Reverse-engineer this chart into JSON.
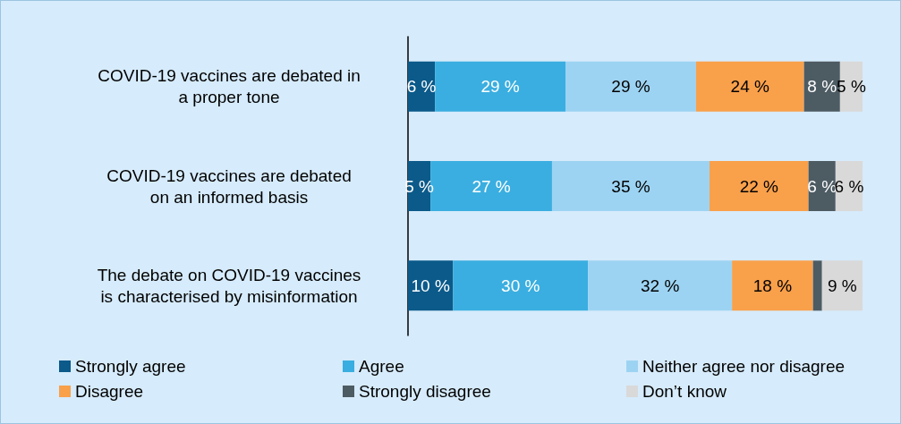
{
  "chart_data": {
    "type": "bar",
    "orientation": "horizontal",
    "stacked": true,
    "categories": [
      "COVID-19 vaccines are debated in\na proper tone",
      "COVID-19 vaccines are debated\non an informed basis",
      "The debate on COVID-19 vaccines\nis characterised by misinformation"
    ],
    "xlim": [
      0,
      101
    ],
    "tick_labels": "y",
    "legend": "bottom",
    "series": [
      {
        "name": "Strongly agree",
        "color": "#0b5a8a",
        "values": [
          6,
          5,
          10
        ],
        "value_labels": [
          "6 %",
          "5 %",
          "10 %"
        ]
      },
      {
        "name": "Agree",
        "color": "#3aaee0",
        "values": [
          29,
          27,
          30
        ],
        "value_labels": [
          "29 %",
          "27 %",
          "30 %"
        ]
      },
      {
        "name": "Neither agree nor disagree",
        "color": "#9dd3f2",
        "values": [
          29,
          35,
          32
        ],
        "value_labels": [
          "29 %",
          "35 %",
          "32 %"
        ]
      },
      {
        "name": "Disagree",
        "color": "#f9a04b",
        "values": [
          24,
          22,
          18
        ],
        "value_labels": [
          "24 %",
          "22 %",
          "18 %"
        ]
      },
      {
        "name": "Strongly disagree",
        "color": "#4d5b63",
        "values": [
          8,
          6,
          2
        ],
        "value_labels": [
          "8 %",
          "6 %",
          null
        ]
      },
      {
        "name": "Don’t know",
        "color": "#d9d9d9",
        "values": [
          5,
          6,
          9
        ],
        "value_labels": [
          "5 %",
          "6 %",
          "9 %"
        ]
      }
    ]
  }
}
